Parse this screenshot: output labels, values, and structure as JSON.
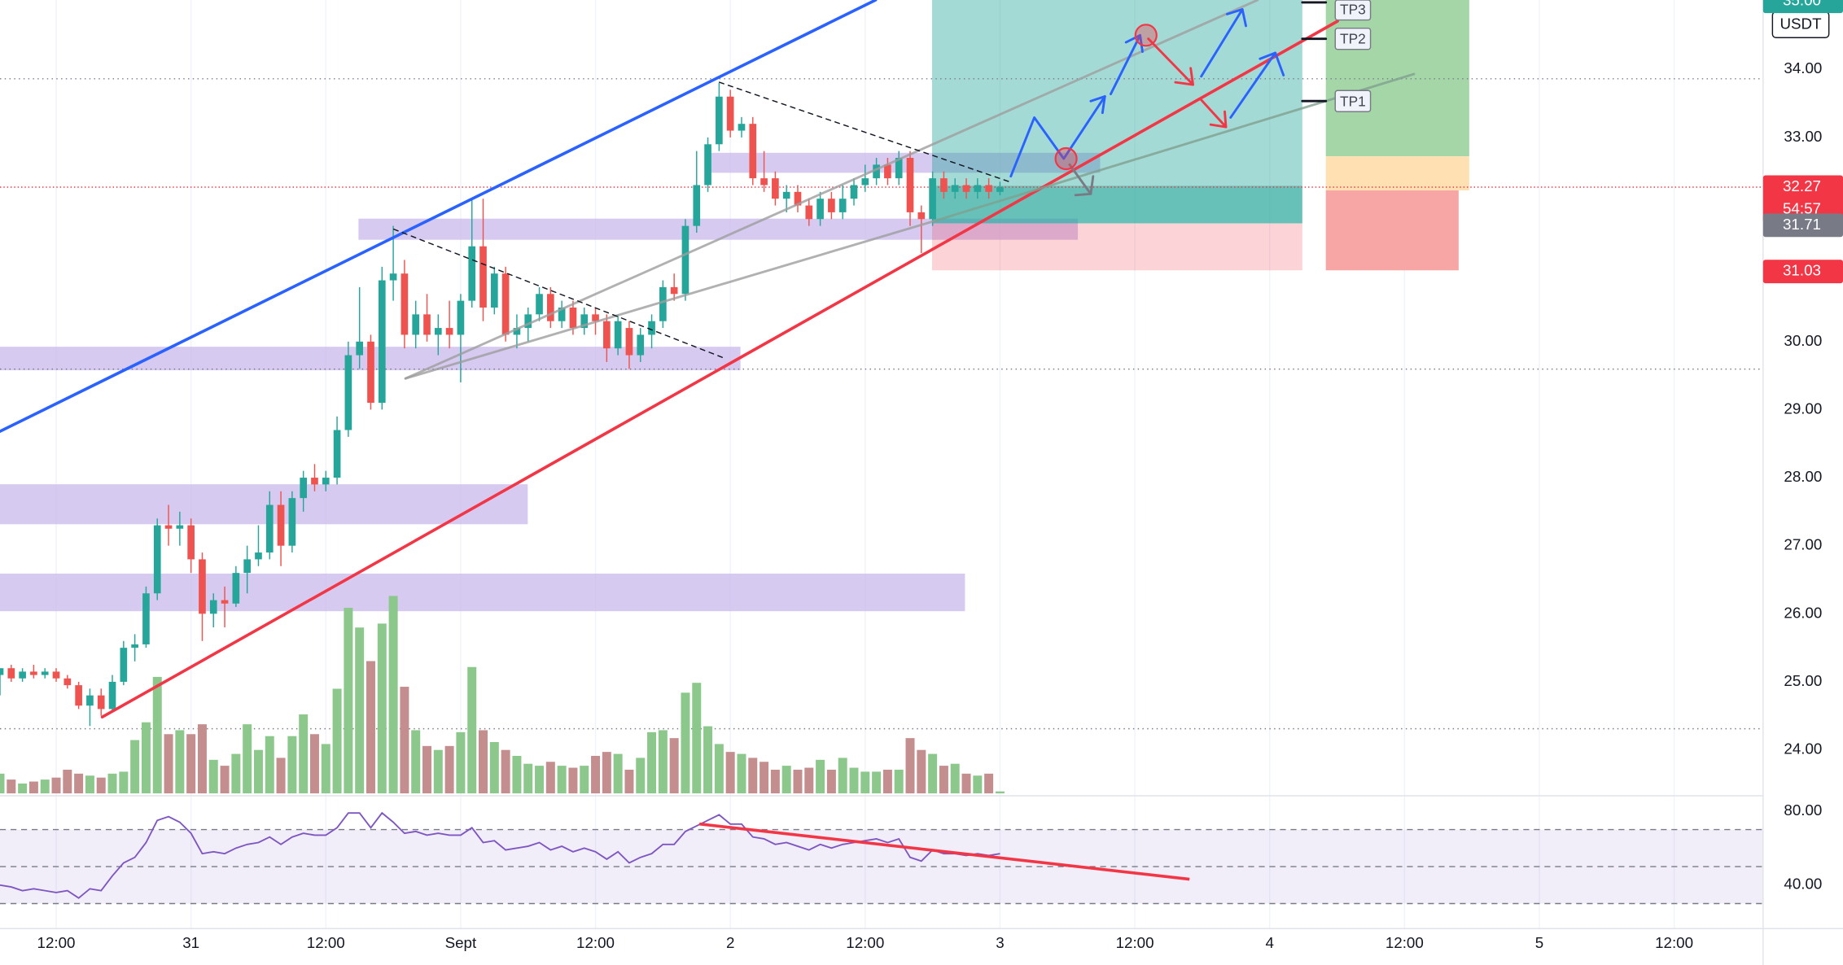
{
  "chart_data": {
    "type": "candlestick",
    "up_color": "#26a69a",
    "down_color": "#ef5350",
    "vol_up_color": "#8cc78c",
    "vol_down_color": "#c48e8e",
    "candles": [
      [
        25.1,
        25.2,
        24.8,
        25.2
      ],
      [
        25.2,
        25.25,
        25.0,
        25.05
      ],
      [
        25.05,
        25.2,
        25.0,
        25.15
      ],
      [
        25.15,
        25.25,
        25.05,
        25.1
      ],
      [
        25.1,
        25.2,
        25.05,
        25.15
      ],
      [
        25.15,
        25.2,
        25.0,
        25.05
      ],
      [
        25.05,
        25.1,
        24.9,
        24.95
      ],
      [
        24.95,
        25.0,
        24.6,
        24.65
      ],
      [
        24.65,
        24.9,
        24.35,
        24.8
      ],
      [
        24.8,
        24.9,
        24.5,
        24.6
      ],
      [
        24.6,
        25.1,
        24.55,
        25.0
      ],
      [
        25.0,
        25.6,
        24.95,
        25.5
      ],
      [
        25.5,
        25.7,
        25.3,
        25.55
      ],
      [
        25.55,
        26.4,
        25.5,
        26.3
      ],
      [
        26.3,
        27.4,
        26.2,
        27.3
      ],
      [
        27.3,
        27.6,
        27.0,
        27.25
      ],
      [
        27.25,
        27.5,
        27.0,
        27.3
      ],
      [
        27.3,
        27.4,
        26.6,
        26.8
      ],
      [
        26.8,
        26.9,
        25.6,
        26.0
      ],
      [
        26.0,
        26.3,
        25.8,
        26.2
      ],
      [
        26.2,
        26.4,
        25.8,
        26.15
      ],
      [
        26.15,
        26.7,
        26.1,
        26.6
      ],
      [
        26.6,
        27.0,
        26.3,
        26.8
      ],
      [
        26.8,
        27.3,
        26.7,
        26.9
      ],
      [
        26.9,
        27.8,
        26.8,
        27.6
      ],
      [
        27.6,
        27.8,
        26.7,
        27.0
      ],
      [
        27.0,
        27.8,
        26.9,
        27.7
      ],
      [
        27.7,
        28.1,
        27.5,
        28.0
      ],
      [
        28.0,
        28.2,
        27.8,
        27.9
      ],
      [
        27.9,
        28.1,
        27.8,
        28.0
      ],
      [
        28.0,
        28.9,
        27.9,
        28.7
      ],
      [
        28.7,
        30.0,
        28.6,
        29.8
      ],
      [
        29.8,
        30.8,
        29.6,
        30.0
      ],
      [
        30.0,
        30.1,
        29.0,
        29.1
      ],
      [
        29.1,
        31.1,
        29.0,
        30.9
      ],
      [
        30.9,
        31.7,
        30.6,
        31.0
      ],
      [
        31.0,
        31.2,
        29.9,
        30.1
      ],
      [
        30.1,
        30.6,
        29.9,
        30.4
      ],
      [
        30.4,
        30.7,
        30.0,
        30.1
      ],
      [
        30.1,
        30.4,
        29.8,
        30.2
      ],
      [
        30.2,
        30.6,
        29.9,
        30.1
      ],
      [
        30.1,
        30.7,
        29.4,
        30.6
      ],
      [
        30.6,
        32.1,
        30.5,
        31.4
      ],
      [
        31.4,
        32.1,
        30.3,
        30.5
      ],
      [
        30.5,
        31.1,
        30.4,
        31.0
      ],
      [
        31.0,
        31.1,
        30.0,
        30.1
      ],
      [
        30.1,
        30.4,
        29.9,
        30.2
      ],
      [
        30.2,
        30.5,
        30.0,
        30.4
      ],
      [
        30.4,
        30.8,
        30.3,
        30.7
      ],
      [
        30.7,
        30.8,
        30.2,
        30.3
      ],
      [
        30.3,
        30.6,
        30.2,
        30.5
      ],
      [
        30.5,
        30.6,
        30.1,
        30.2
      ],
      [
        30.2,
        30.5,
        30.1,
        30.4
      ],
      [
        30.4,
        30.5,
        30.1,
        30.3
      ],
      [
        30.3,
        30.4,
        29.7,
        29.9
      ],
      [
        29.9,
        30.4,
        29.8,
        30.3
      ],
      [
        30.2,
        30.3,
        29.6,
        29.8
      ],
      [
        29.8,
        30.2,
        29.7,
        30.1
      ],
      [
        30.1,
        30.4,
        29.9,
        30.3
      ],
      [
        30.3,
        30.9,
        30.2,
        30.8
      ],
      [
        30.8,
        31.0,
        30.6,
        30.7
      ],
      [
        30.7,
        31.8,
        30.6,
        31.7
      ],
      [
        31.7,
        32.8,
        31.6,
        32.3
      ],
      [
        32.3,
        33.0,
        32.2,
        32.9
      ],
      [
        32.9,
        33.8,
        32.8,
        33.6
      ],
      [
        33.6,
        33.7,
        33.0,
        33.1
      ],
      [
        33.1,
        33.3,
        33.0,
        33.2
      ],
      [
        33.2,
        33.3,
        32.3,
        32.4
      ],
      [
        32.4,
        32.8,
        32.2,
        32.3
      ],
      [
        32.4,
        32.5,
        32.0,
        32.1
      ],
      [
        32.1,
        32.3,
        31.9,
        32.2
      ],
      [
        32.2,
        32.3,
        31.9,
        32.0
      ],
      [
        32.0,
        32.1,
        31.7,
        31.8
      ],
      [
        31.8,
        32.2,
        31.7,
        32.1
      ],
      [
        32.1,
        32.2,
        31.8,
        31.9
      ],
      [
        31.9,
        32.3,
        31.8,
        32.1
      ],
      [
        32.1,
        32.4,
        32.0,
        32.3
      ],
      [
        32.3,
        32.6,
        32.2,
        32.4
      ],
      [
        32.4,
        32.7,
        32.3,
        32.6
      ],
      [
        32.6,
        32.7,
        32.3,
        32.4
      ],
      [
        32.4,
        32.8,
        32.3,
        32.7
      ],
      [
        32.7,
        32.8,
        31.7,
        31.9
      ],
      [
        31.9,
        32.0,
        31.3,
        31.8
      ],
      [
        31.8,
        32.5,
        31.7,
        32.4
      ],
      [
        32.4,
        32.5,
        32.1,
        32.2
      ],
      [
        32.2,
        32.4,
        32.1,
        32.3
      ],
      [
        32.3,
        32.4,
        32.1,
        32.2
      ],
      [
        32.2,
        32.4,
        32.1,
        32.3
      ],
      [
        32.3,
        32.4,
        32.1,
        32.2
      ],
      [
        32.2,
        32.35,
        32.15,
        32.27
      ]
    ],
    "volume": [
      10,
      7,
      5,
      6,
      7,
      8,
      12,
      10,
      9,
      8,
      10,
      11,
      27,
      36,
      59,
      30,
      32,
      30,
      35,
      17,
      14,
      20,
      35,
      22,
      29,
      18,
      29,
      40,
      30,
      25,
      53,
      94,
      84,
      67,
      86,
      100,
      54,
      32,
      24,
      22,
      24,
      31,
      64,
      32,
      26,
      22,
      19,
      15,
      14,
      16,
      14,
      13,
      14,
      19,
      21,
      20,
      12,
      18,
      31,
      32,
      28,
      51,
      56,
      34,
      25,
      21,
      20,
      18,
      16,
      12,
      14,
      12,
      13,
      17,
      12,
      18,
      13,
      11,
      11,
      12,
      12,
      28,
      22,
      20,
      14,
      15,
      10,
      9,
      10,
      1
    ],
    "volume_lim": [
      0,
      100
    ],
    "ylim": [
      23.36,
      35.02
    ],
    "yticks": [
      {
        "value": 24,
        "label": "24.00"
      },
      {
        "value": 25,
        "label": "25.00"
      },
      {
        "value": 26,
        "label": "26.00"
      },
      {
        "value": 27,
        "label": "27.00"
      },
      {
        "value": 28,
        "label": "28.00"
      },
      {
        "value": 29,
        "label": "29.00"
      },
      {
        "value": 30,
        "label": "30.00"
      },
      {
        "value": 31,
        "label": "31.00"
      },
      {
        "value": 32,
        "label": "32.00"
      },
      {
        "value": 33,
        "label": "33.00"
      },
      {
        "value": 34,
        "label": "34.00"
      }
    ],
    "xlim": [
      0,
      156.6
    ],
    "xticks": [
      {
        "value": 5,
        "label": "12:00"
      },
      {
        "value": 17,
        "label": "31"
      },
      {
        "value": 29,
        "label": "12:00"
      },
      {
        "value": 41,
        "label": "Sept"
      },
      {
        "value": 53,
        "label": "12:00"
      },
      {
        "value": 65,
        "label": "2"
      },
      {
        "value": 77,
        "label": "12:00"
      },
      {
        "value": 89,
        "label": "3"
      },
      {
        "value": 101,
        "label": "12:00"
      },
      {
        "value": 113,
        "label": "4"
      },
      {
        "value": 125,
        "label": "12:00"
      },
      {
        "value": 137,
        "label": "5"
      },
      {
        "value": 149,
        "label": "12:00"
      }
    ],
    "grid": true,
    "currency": "USDT",
    "countdown": "54:57",
    "price_labels": [
      {
        "value": 35,
        "label": "35.00",
        "color": "#26a69a"
      },
      {
        "value": 32.27,
        "label": "32.27",
        "color": "#f23645"
      },
      {
        "value": 31.71,
        "label": "31.71",
        "color": "#787b86"
      },
      {
        "value": 31.03,
        "label": "31.03",
        "color": "#f23645"
      }
    ],
    "tp_labels": [
      "TP1",
      "TP2",
      "TP3"
    ],
    "rsi": {
      "color": "#7e57c2",
      "ylim": [
        16.5,
        88.3
      ],
      "yticks": [
        {
          "value": 80,
          "label": "80.00"
        },
        {
          "value": 40,
          "label": "40.00"
        }
      ],
      "bands": [
        70,
        50,
        30
      ],
      "values": [
        40,
        39,
        37,
        38,
        37,
        36,
        37,
        33,
        38,
        37,
        45,
        52,
        55,
        63,
        75,
        77,
        74,
        68,
        57,
        58,
        57,
        60,
        62,
        63,
        66,
        62,
        66,
        68,
        67,
        67,
        71,
        79,
        79,
        71,
        79,
        74,
        68,
        69,
        67,
        68,
        67,
        67,
        71,
        63,
        64,
        59,
        60,
        61,
        63,
        59,
        61,
        58,
        60,
        58,
        54,
        58,
        52,
        55,
        57,
        62,
        62,
        69,
        72,
        75,
        78,
        73,
        73,
        66,
        65,
        62,
        63,
        61,
        59,
        62,
        60,
        62,
        63,
        64,
        65,
        63,
        65,
        55,
        53,
        59,
        57,
        57,
        56,
        57,
        56,
        57
      ]
    }
  }
}
